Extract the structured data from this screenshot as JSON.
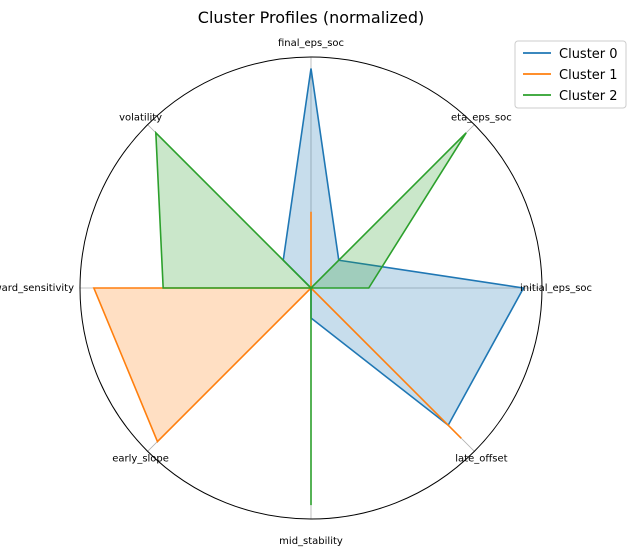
{
  "chart_data": {
    "type": "radar",
    "title": "Cluster Profiles (normalized)",
    "axes": [
      "initial_eps_soc",
      "eta_eps_soc",
      "final_eps_soc",
      "volatility",
      "reward_sensitivity",
      "early_slope",
      "mid_stability",
      "late_offset"
    ],
    "rlim": [
      0,
      1
    ],
    "grid": true,
    "legend": "top-right",
    "series": [
      {
        "name": "Cluster 0",
        "color": "#1f77b4",
        "fill": true,
        "values": [
          0.92,
          0.17,
          0.95,
          0.17,
          0.0,
          0.0,
          0.13,
          0.84
        ]
      },
      {
        "name": "Cluster 1",
        "color": "#ff7f0e",
        "fill": true,
        "values": [
          0.0,
          0.0,
          0.33,
          0.0,
          0.94,
          0.94,
          0.0,
          0.92
        ]
      },
      {
        "name": "Cluster 2",
        "color": "#2ca02c",
        "fill": true,
        "values": [
          0.25,
          0.95,
          0.0,
          0.95,
          0.64,
          0.0,
          0.94,
          0.0
        ]
      }
    ]
  }
}
